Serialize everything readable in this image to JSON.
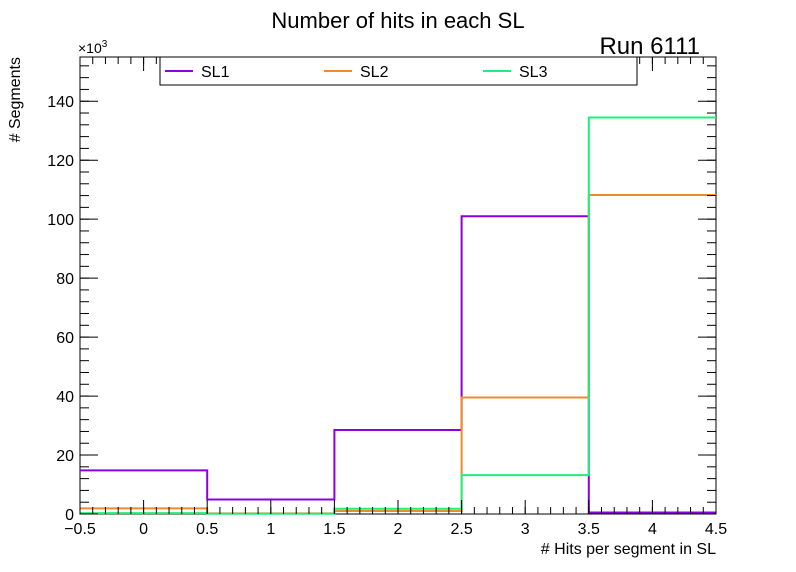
{
  "chart_data": {
    "type": "step-histogram",
    "title": "Number of hits in each SL",
    "run_label": "Run 6111",
    "xlabel": "# Hits per segment in SL",
    "ylabel": "# Segments",
    "y_scale_base": "×10",
    "y_scale_exponent": "3",
    "bin_edges": [
      -0.5,
      0.5,
      1.5,
      2.5,
      3.5,
      4.5
    ],
    "xlim": [
      -0.5,
      4.5
    ],
    "ylim": [
      0,
      155
    ],
    "x_ticks": [
      -0.5,
      0,
      0.5,
      1,
      1.5,
      2,
      2.5,
      3,
      3.5,
      4,
      4.5
    ],
    "x_tick_labels": [
      "−0.5",
      "0",
      "0.5",
      "1",
      "1.5",
      "2",
      "2.5",
      "3",
      "3.5",
      "4",
      "4.5"
    ],
    "y_ticks": [
      0,
      20,
      40,
      60,
      80,
      100,
      120,
      140
    ],
    "y_tick_labels": [
      "0",
      "20",
      "40",
      "60",
      "80",
      "100",
      "120",
      "140"
    ],
    "y_units": "thousands",
    "legend_position": "top",
    "series": [
      {
        "name": "SL1",
        "color": "#8a00e0",
        "values": [
          14.8,
          4.9,
          28.5,
          101.0,
          0.5
        ]
      },
      {
        "name": "SL2",
        "color": "#f08c28",
        "values": [
          1.9,
          0.2,
          1.0,
          39.5,
          108.2
        ]
      },
      {
        "name": "SL3",
        "color": "#1cf07a",
        "values": [
          0.3,
          0.1,
          1.8,
          13.2,
          134.5
        ]
      }
    ]
  }
}
